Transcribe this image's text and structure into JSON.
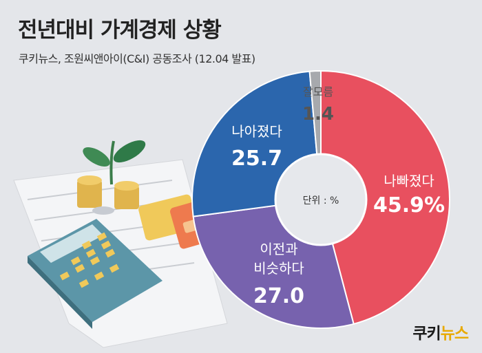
{
  "header": {
    "title": "전년대비 가계경제 상황",
    "subtitle": "쿠키뉴스, 조원씨앤아이(C&I) 공동조사 (12.04 발표)"
  },
  "brand": {
    "part1": "쿠키",
    "part2": "뉴스"
  },
  "colors": {
    "worse": "#e8505f",
    "same": "#7762ae",
    "better": "#2b66ad",
    "unknown": "#a7a9ad",
    "background": "#e4e6ea",
    "center": "#e6e8ec"
  },
  "chart_data": {
    "type": "pie",
    "title": "전년대비 가계경제 상황",
    "center_label": "단위 : %",
    "slices": [
      {
        "label": "나빠졌다",
        "value": 45.9,
        "display": "45.9%"
      },
      {
        "label": "이전과 비슷하다",
        "value": 27.0,
        "display": "27.0"
      },
      {
        "label": "나아졌다",
        "value": 25.7,
        "display": "25.7"
      },
      {
        "label": "잘모름",
        "value": 1.4,
        "display": "1.4"
      }
    ]
  }
}
